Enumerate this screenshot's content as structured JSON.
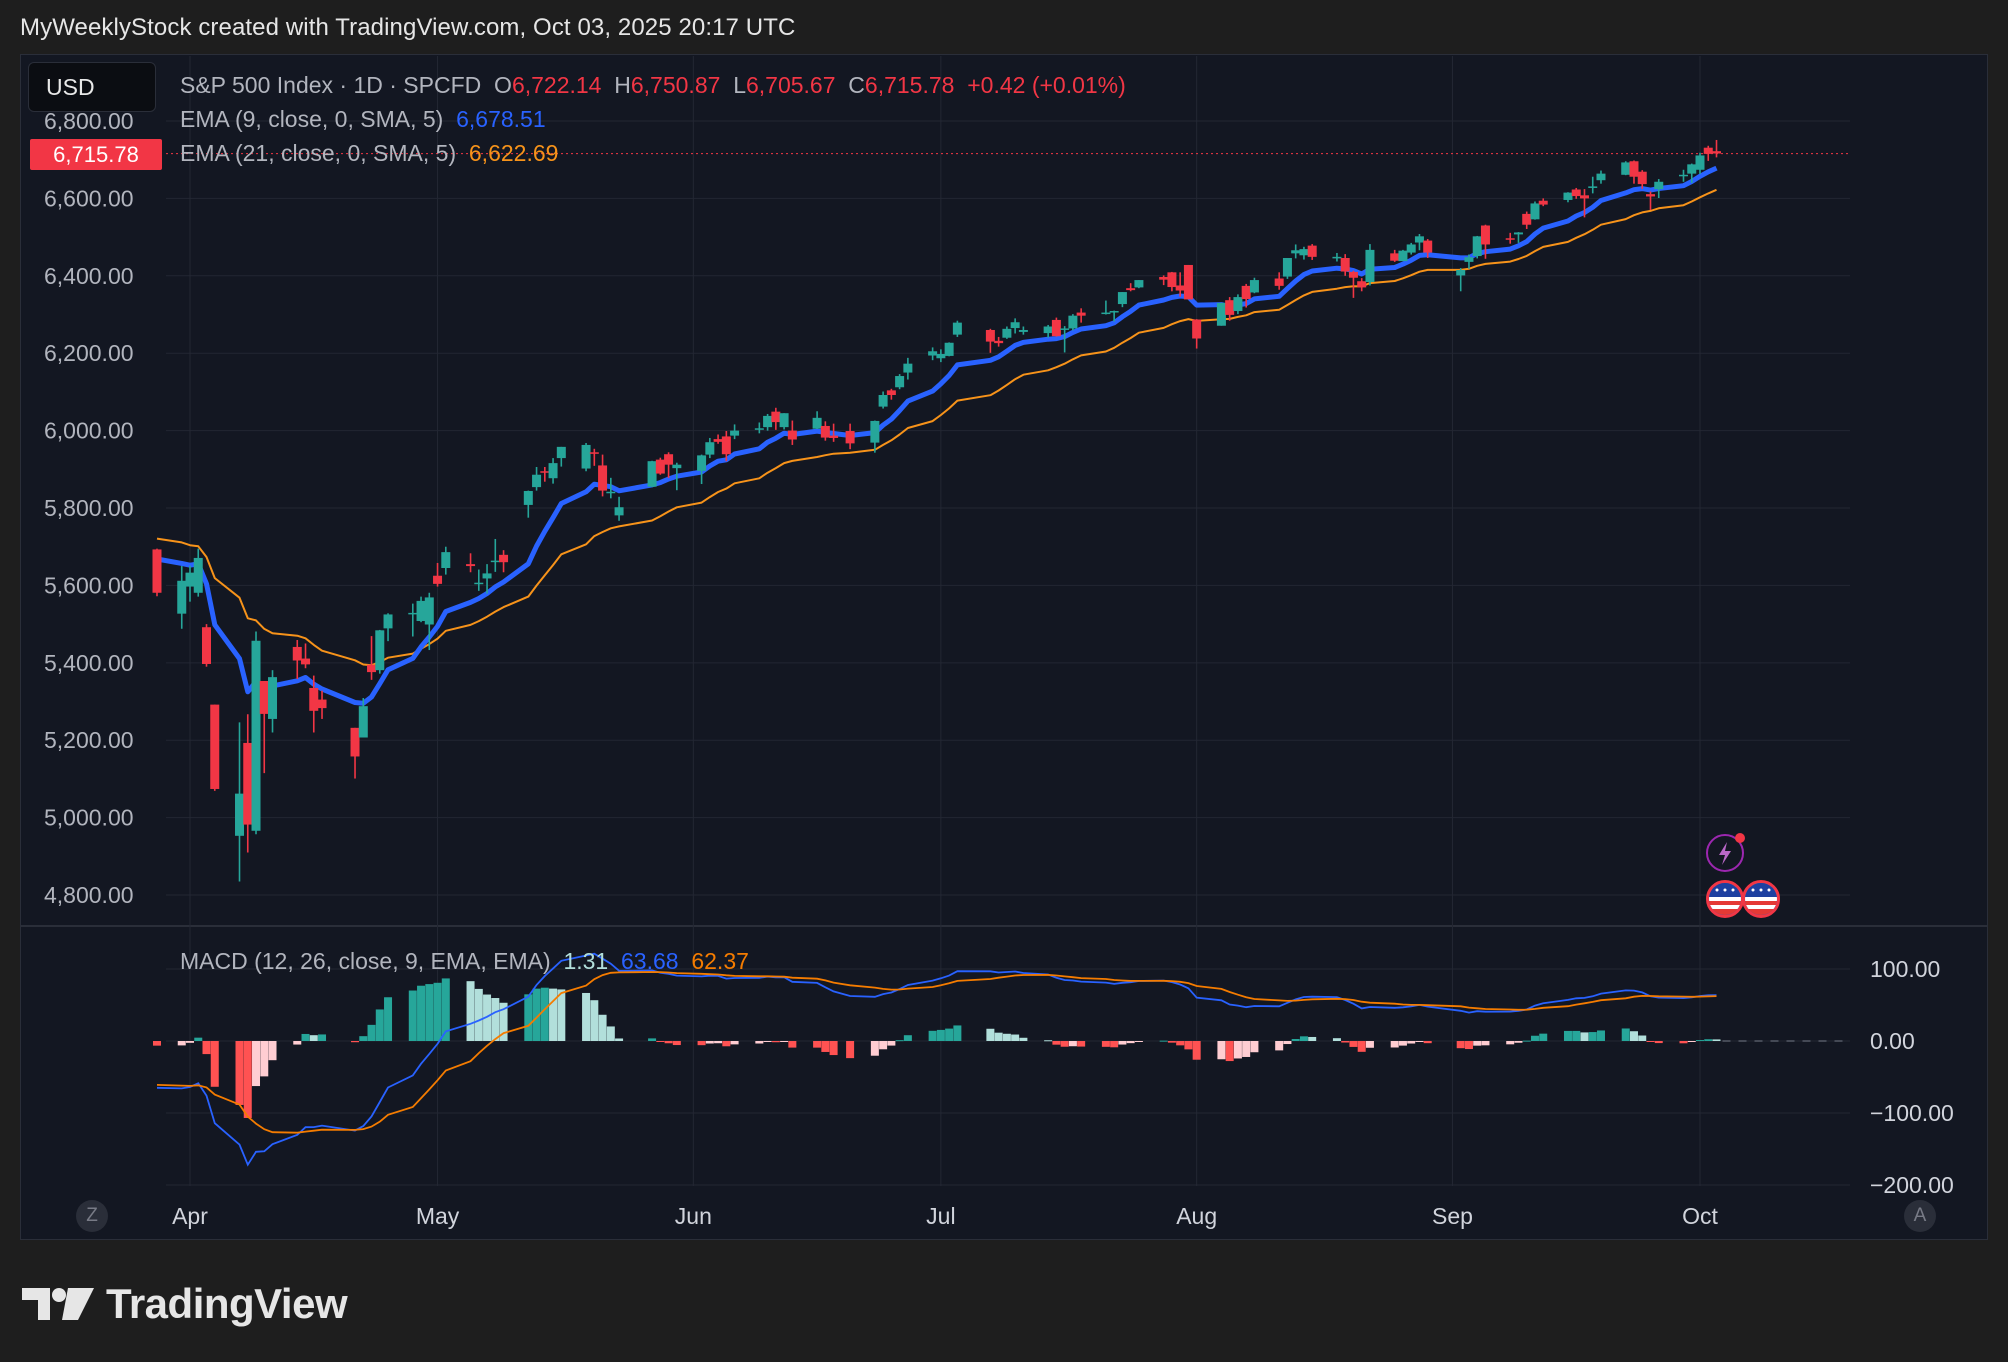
{
  "header": {
    "attribution": "MyWeeklyStock created with TradingView.com, Oct 03, 2025 20:17 UTC"
  },
  "toolbar": {
    "currency_label": "USD"
  },
  "legend": {
    "symbol": "S&P 500 Index · 1D · SPCFD",
    "open_label": "O",
    "open": "6,722.14",
    "high_label": "H",
    "high": "6,750.87",
    "low_label": "L",
    "low": "6,705.67",
    "close_label": "C",
    "close": "6,715.78",
    "change": "+0.42 (+0.01%)",
    "ema9_label": "EMA (9, close, 0, SMA, 5)",
    "ema9_value": "6,678.51",
    "ema21_label": "EMA (21, close, 0, SMA, 5)",
    "ema21_value": "6,622.69",
    "macd_label": "MACD (12, 26, close, 9, EMA, EMA)",
    "macd_hist": "1.31",
    "macd_line": "63.68",
    "macd_signal": "62.37"
  },
  "last_price_badge": "6,715.78",
  "corners": {
    "left": "Z",
    "right": "A"
  },
  "brand": {
    "name": "TradingView"
  },
  "colors": {
    "up": "#26a69a",
    "down": "#f23645",
    "ema9": "#2962ff",
    "ema21": "#f7931a",
    "macd": "#2962ff",
    "signal": "#f57c00",
    "grid": "#232733",
    "text": "#b2b5be"
  },
  "icons": [
    "lightning-event-icon",
    "us-flag-event-icon",
    "us-flag-event-icon"
  ],
  "chart_data": {
    "type": "candlestick",
    "price_axis": {
      "ticks": [
        "6,800.00",
        "6,600.00",
        "6,400.00",
        "6,200.00",
        "6,000.00",
        "5,800.00",
        "5,600.00",
        "5,400.00",
        "5,200.00",
        "5,000.00",
        "4,800.00"
      ],
      "range": [
        4700,
        6800
      ]
    },
    "time_axis": {
      "labels": [
        "Apr",
        "May",
        "Jun",
        "Jul",
        "Aug",
        "Sep",
        "Oct"
      ],
      "range": [
        "2025-03-28",
        "2025-10-31"
      ]
    },
    "macd_axis": {
      "ticks": [
        "100.00",
        "0.00",
        "−100.00",
        "−200.00"
      ],
      "range": [
        -200,
        130
      ]
    },
    "candles": [
      {
        "date": "2025-03-28",
        "o": 5693,
        "h": 5695,
        "l": 5572,
        "c": 5581
      },
      {
        "date": "2025-03-31",
        "o": 5527,
        "h": 5650,
        "l": 5488,
        "c": 5612
      },
      {
        "date": "2025-04-01",
        "o": 5597,
        "h": 5651,
        "l": 5558,
        "c": 5633
      },
      {
        "date": "2025-04-02",
        "o": 5581,
        "h": 5695,
        "l": 5571,
        "c": 5671
      },
      {
        "date": "2025-04-03",
        "o": 5492,
        "h": 5500,
        "l": 5390,
        "c": 5397
      },
      {
        "date": "2025-04-04",
        "o": 5292,
        "h": 5292,
        "l": 5069,
        "c": 5074
      },
      {
        "date": "2025-04-07",
        "o": 4953,
        "h": 5246,
        "l": 4835,
        "c": 5062
      },
      {
        "date": "2025-04-08",
        "o": 5193,
        "h": 5267,
        "l": 4910,
        "c": 4982
      },
      {
        "date": "2025-04-09",
        "o": 4966,
        "h": 5481,
        "l": 4957,
        "c": 5457
      },
      {
        "date": "2025-04-10",
        "o": 5353,
        "h": 5353,
        "l": 5115,
        "c": 5268
      },
      {
        "date": "2025-04-11",
        "o": 5255,
        "h": 5381,
        "l": 5220,
        "c": 5363
      },
      {
        "date": "2025-04-14",
        "o": 5441,
        "h": 5459,
        "l": 5358,
        "c": 5406
      },
      {
        "date": "2025-04-15",
        "o": 5411,
        "h": 5450,
        "l": 5386,
        "c": 5396
      },
      {
        "date": "2025-04-16",
        "o": 5335,
        "h": 5367,
        "l": 5220,
        "c": 5276
      },
      {
        "date": "2025-04-17",
        "o": 5305,
        "h": 5328,
        "l": 5255,
        "c": 5283
      },
      {
        "date": "2025-04-21",
        "o": 5232,
        "h": 5232,
        "l": 5101,
        "c": 5158
      },
      {
        "date": "2025-04-22",
        "o": 5207,
        "h": 5309,
        "l": 5207,
        "c": 5288
      },
      {
        "date": "2025-04-23",
        "o": 5395,
        "h": 5469,
        "l": 5356,
        "c": 5376
      },
      {
        "date": "2025-04-24",
        "o": 5381,
        "h": 5485,
        "l": 5372,
        "c": 5484
      },
      {
        "date": "2025-04-25",
        "o": 5489,
        "h": 5528,
        "l": 5456,
        "c": 5525
      },
      {
        "date": "2025-04-28",
        "o": 5529,
        "h": 5553,
        "l": 5468,
        "c": 5529
      },
      {
        "date": "2025-04-29",
        "o": 5508,
        "h": 5571,
        "l": 5505,
        "c": 5560
      },
      {
        "date": "2025-04-30",
        "o": 5499,
        "h": 5581,
        "l": 5433,
        "c": 5569
      },
      {
        "date": "2025-05-01",
        "o": 5625,
        "h": 5658,
        "l": 5597,
        "c": 5604
      },
      {
        "date": "2025-05-02",
        "o": 5645,
        "h": 5700,
        "l": 5628,
        "c": 5686
      },
      {
        "date": "2025-05-05",
        "o": 5655,
        "h": 5683,
        "l": 5634,
        "c": 5650
      },
      {
        "date": "2025-05-06",
        "o": 5607,
        "h": 5641,
        "l": 5586,
        "c": 5607
      },
      {
        "date": "2025-05-07",
        "o": 5618,
        "h": 5655,
        "l": 5579,
        "c": 5631
      },
      {
        "date": "2025-05-08",
        "o": 5663,
        "h": 5720,
        "l": 5635,
        "c": 5664
      },
      {
        "date": "2025-05-09",
        "o": 5679,
        "h": 5691,
        "l": 5634,
        "c": 5660
      },
      {
        "date": "2025-05-12",
        "o": 5808,
        "h": 5845,
        "l": 5775,
        "c": 5844
      },
      {
        "date": "2025-05-13",
        "o": 5854,
        "h": 5906,
        "l": 5845,
        "c": 5886
      },
      {
        "date": "2025-05-14",
        "o": 5895,
        "h": 5906,
        "l": 5868,
        "c": 5892
      },
      {
        "date": "2025-05-15",
        "o": 5877,
        "h": 5929,
        "l": 5863,
        "c": 5916
      },
      {
        "date": "2025-05-16",
        "o": 5929,
        "h": 5958,
        "l": 5907,
        "c": 5958
      },
      {
        "date": "2025-05-19",
        "o": 5902,
        "h": 5968,
        "l": 5895,
        "c": 5963
      },
      {
        "date": "2025-05-20",
        "o": 5944,
        "h": 5953,
        "l": 5909,
        "c": 5940
      },
      {
        "date": "2025-05-21",
        "o": 5910,
        "h": 5938,
        "l": 5830,
        "c": 5845
      },
      {
        "date": "2025-05-22",
        "o": 5842,
        "h": 5878,
        "l": 5825,
        "c": 5842
      },
      {
        "date": "2025-05-23",
        "o": 5781,
        "h": 5829,
        "l": 5767,
        "c": 5802
      },
      {
        "date": "2025-05-27",
        "o": 5855,
        "h": 5922,
        "l": 5854,
        "c": 5921
      },
      {
        "date": "2025-05-28",
        "o": 5925,
        "h": 5930,
        "l": 5886,
        "c": 5889
      },
      {
        "date": "2025-05-29",
        "o": 5939,
        "h": 5944,
        "l": 5878,
        "c": 5912
      },
      {
        "date": "2025-05-30",
        "o": 5903,
        "h": 5917,
        "l": 5846,
        "c": 5912
      },
      {
        "date": "2025-06-02",
        "o": 5896,
        "h": 5938,
        "l": 5862,
        "c": 5936
      },
      {
        "date": "2025-06-03",
        "o": 5938,
        "h": 5981,
        "l": 5929,
        "c": 5970
      },
      {
        "date": "2025-06-04",
        "o": 5978,
        "h": 5990,
        "l": 5966,
        "c": 5971
      },
      {
        "date": "2025-06-05",
        "o": 5985,
        "h": 5999,
        "l": 5921,
        "c": 5939
      },
      {
        "date": "2025-06-06",
        "o": 5987,
        "h": 6016,
        "l": 5978,
        "c": 6000
      },
      {
        "date": "2025-06-09",
        "o": 6004,
        "h": 6021,
        "l": 5993,
        "c": 6006
      },
      {
        "date": "2025-06-10",
        "o": 6009,
        "h": 6043,
        "l": 6000,
        "c": 6038
      },
      {
        "date": "2025-06-11",
        "o": 6049,
        "h": 6059,
        "l": 6002,
        "c": 6022
      },
      {
        "date": "2025-06-12",
        "o": 6009,
        "h": 6045,
        "l": 6003,
        "c": 6045
      },
      {
        "date": "2025-06-13",
        "o": 6000,
        "h": 6026,
        "l": 5963,
        "c": 5977
      },
      {
        "date": "2025-06-16",
        "o": 6005,
        "h": 6050,
        "l": 6004,
        "c": 6033
      },
      {
        "date": "2025-06-17",
        "o": 6012,
        "h": 6024,
        "l": 5974,
        "c": 5982
      },
      {
        "date": "2025-06-18",
        "o": 5987,
        "h": 6018,
        "l": 5971,
        "c": 5981
      },
      {
        "date": "2025-06-20",
        "o": 5999,
        "h": 6018,
        "l": 5952,
        "c": 5967
      },
      {
        "date": "2025-06-23",
        "o": 5969,
        "h": 6026,
        "l": 5943,
        "c": 6025
      },
      {
        "date": "2025-06-24",
        "o": 6062,
        "h": 6101,
        "l": 6057,
        "c": 6092
      },
      {
        "date": "2025-06-25",
        "o": 6104,
        "h": 6108,
        "l": 6080,
        "c": 6092
      },
      {
        "date": "2025-06-26",
        "o": 6112,
        "h": 6146,
        "l": 6107,
        "c": 6141
      },
      {
        "date": "2025-06-27",
        "o": 6150,
        "h": 6188,
        "l": 6132,
        "c": 6173
      },
      {
        "date": "2025-06-30",
        "o": 6194,
        "h": 6215,
        "l": 6182,
        "c": 6205
      },
      {
        "date": "2025-07-01",
        "o": 6187,
        "h": 6210,
        "l": 6177,
        "c": 6198
      },
      {
        "date": "2025-07-02",
        "o": 6193,
        "h": 6228,
        "l": 6192,
        "c": 6227
      },
      {
        "date": "2025-07-03",
        "o": 6248,
        "h": 6284,
        "l": 6242,
        "c": 6279
      },
      {
        "date": "2025-07-07",
        "o": 6260,
        "h": 6263,
        "l": 6201,
        "c": 6230
      },
      {
        "date": "2025-07-08",
        "o": 6232,
        "h": 6242,
        "l": 6217,
        "c": 6226
      },
      {
        "date": "2025-07-09",
        "o": 6240,
        "h": 6269,
        "l": 6237,
        "c": 6263
      },
      {
        "date": "2025-07-10",
        "o": 6265,
        "h": 6290,
        "l": 6251,
        "c": 6280
      },
      {
        "date": "2025-07-11",
        "o": 6255,
        "h": 6269,
        "l": 6248,
        "c": 6260
      },
      {
        "date": "2025-07-14",
        "o": 6252,
        "h": 6273,
        "l": 6240,
        "c": 6269
      },
      {
        "date": "2025-07-15",
        "o": 6286,
        "h": 6292,
        "l": 6243,
        "c": 6244
      },
      {
        "date": "2025-07-16",
        "o": 6264,
        "h": 6270,
        "l": 6202,
        "c": 6264
      },
      {
        "date": "2025-07-17",
        "o": 6264,
        "h": 6301,
        "l": 6259,
        "c": 6297
      },
      {
        "date": "2025-07-18",
        "o": 6305,
        "h": 6316,
        "l": 6279,
        "c": 6297
      },
      {
        "date": "2025-07-21",
        "o": 6304,
        "h": 6336,
        "l": 6300,
        "c": 6305
      },
      {
        "date": "2025-07-22",
        "o": 6307,
        "h": 6310,
        "l": 6282,
        "c": 6309
      },
      {
        "date": "2025-07-23",
        "o": 6327,
        "h": 6358,
        "l": 6319,
        "c": 6358
      },
      {
        "date": "2025-07-24",
        "o": 6368,
        "h": 6381,
        "l": 6360,
        "c": 6363
      },
      {
        "date": "2025-07-25",
        "o": 6370,
        "h": 6389,
        "l": 6368,
        "c": 6389
      },
      {
        "date": "2025-07-28",
        "o": 6397,
        "h": 6401,
        "l": 6376,
        "c": 6390
      },
      {
        "date": "2025-07-29",
        "o": 6409,
        "h": 6410,
        "l": 6360,
        "c": 6371
      },
      {
        "date": "2025-07-30",
        "o": 6375,
        "h": 6409,
        "l": 6346,
        "c": 6362
      },
      {
        "date": "2025-07-31",
        "o": 6428,
        "h": 6428,
        "l": 6340,
        "c": 6339
      },
      {
        "date": "2025-08-01",
        "o": 6287,
        "h": 6288,
        "l": 6212,
        "c": 6238
      },
      {
        "date": "2025-08-04",
        "o": 6271,
        "h": 6330,
        "l": 6271,
        "c": 6330
      },
      {
        "date": "2025-08-05",
        "o": 6337,
        "h": 6345,
        "l": 6284,
        "c": 6299
      },
      {
        "date": "2025-08-06",
        "o": 6309,
        "h": 6352,
        "l": 6301,
        "c": 6345
      },
      {
        "date": "2025-08-07",
        "o": 6374,
        "h": 6379,
        "l": 6318,
        "c": 6340
      },
      {
        "date": "2025-08-08",
        "o": 6357,
        "h": 6395,
        "l": 6355,
        "c": 6389
      },
      {
        "date": "2025-08-11",
        "o": 6393,
        "h": 6409,
        "l": 6364,
        "c": 6374
      },
      {
        "date": "2025-08-12",
        "o": 6398,
        "h": 6446,
        "l": 6392,
        "c": 6446
      },
      {
        "date": "2025-08-13",
        "o": 6458,
        "h": 6481,
        "l": 6445,
        "c": 6466
      },
      {
        "date": "2025-08-14",
        "o": 6453,
        "h": 6475,
        "l": 6442,
        "c": 6469
      },
      {
        "date": "2025-08-15",
        "o": 6478,
        "h": 6482,
        "l": 6441,
        "c": 6449
      },
      {
        "date": "2025-08-18",
        "o": 6445,
        "h": 6459,
        "l": 6437,
        "c": 6449
      },
      {
        "date": "2025-08-19",
        "o": 6446,
        "h": 6456,
        "l": 6400,
        "c": 6411
      },
      {
        "date": "2025-08-20",
        "o": 6410,
        "h": 6413,
        "l": 6343,
        "c": 6395
      },
      {
        "date": "2025-08-21",
        "o": 6386,
        "h": 6394,
        "l": 6360,
        "c": 6370
      },
      {
        "date": "2025-08-22",
        "o": 6384,
        "h": 6482,
        "l": 6375,
        "c": 6467
      },
      {
        "date": "2025-08-25",
        "o": 6458,
        "h": 6467,
        "l": 6436,
        "c": 6439
      },
      {
        "date": "2025-08-26",
        "o": 6438,
        "h": 6467,
        "l": 6438,
        "c": 6465
      },
      {
        "date": "2025-08-27",
        "o": 6460,
        "h": 6485,
        "l": 6455,
        "c": 6481
      },
      {
        "date": "2025-08-28",
        "o": 6486,
        "h": 6508,
        "l": 6466,
        "c": 6502
      },
      {
        "date": "2025-08-29",
        "o": 6491,
        "h": 6495,
        "l": 6446,
        "c": 6460
      },
      {
        "date": "2025-09-02",
        "o": 6401,
        "h": 6420,
        "l": 6360,
        "c": 6415
      },
      {
        "date": "2025-09-03",
        "o": 6436,
        "h": 6455,
        "l": 6418,
        "c": 6448
      },
      {
        "date": "2025-09-04",
        "o": 6451,
        "h": 6503,
        "l": 6445,
        "c": 6502
      },
      {
        "date": "2025-09-05",
        "o": 6530,
        "h": 6532,
        "l": 6444,
        "c": 6481
      },
      {
        "date": "2025-09-08",
        "o": 6497,
        "h": 6511,
        "l": 6483,
        "c": 6495
      },
      {
        "date": "2025-09-09",
        "o": 6507,
        "h": 6513,
        "l": 6485,
        "c": 6512
      },
      {
        "date": "2025-09-10",
        "o": 6560,
        "h": 6566,
        "l": 6521,
        "c": 6532
      },
      {
        "date": "2025-09-11",
        "o": 6546,
        "h": 6592,
        "l": 6545,
        "c": 6587
      },
      {
        "date": "2025-09-12",
        "o": 6594,
        "h": 6600,
        "l": 6580,
        "c": 6584
      },
      {
        "date": "2025-09-15",
        "o": 6596,
        "h": 6616,
        "l": 6590,
        "c": 6615
      },
      {
        "date": "2025-09-16",
        "o": 6623,
        "h": 6627,
        "l": 6599,
        "c": 6606
      },
      {
        "date": "2025-09-17",
        "o": 6608,
        "h": 6624,
        "l": 6551,
        "c": 6600
      },
      {
        "date": "2025-09-18",
        "o": 6627,
        "h": 6656,
        "l": 6613,
        "c": 6631
      },
      {
        "date": "2025-09-19",
        "o": 6647,
        "h": 6672,
        "l": 6638,
        "c": 6664
      },
      {
        "date": "2025-09-22",
        "o": 6661,
        "h": 6696,
        "l": 6660,
        "c": 6693
      },
      {
        "date": "2025-09-23",
        "o": 6696,
        "h": 6698,
        "l": 6638,
        "c": 6656
      },
      {
        "date": "2025-09-24",
        "o": 6669,
        "h": 6673,
        "l": 6625,
        "c": 6637
      },
      {
        "date": "2025-09-25",
        "o": 6611,
        "h": 6618,
        "l": 6570,
        "c": 6605
      },
      {
        "date": "2025-09-26",
        "o": 6624,
        "h": 6650,
        "l": 6601,
        "c": 6643
      },
      {
        "date": "2025-09-29",
        "o": 6661,
        "h": 6674,
        "l": 6643,
        "c": 6661
      },
      {
        "date": "2025-09-30",
        "o": 6664,
        "h": 6690,
        "l": 6640,
        "c": 6688
      },
      {
        "date": "2025-10-01",
        "o": 6674,
        "h": 6718,
        "l": 6663,
        "c": 6711
      },
      {
        "date": "2025-10-02",
        "o": 6731,
        "h": 6736,
        "l": 6697,
        "c": 6715
      },
      {
        "date": "2025-10-03",
        "o": 6722,
        "h": 6751,
        "l": 6706,
        "c": 6716
      }
    ]
  }
}
